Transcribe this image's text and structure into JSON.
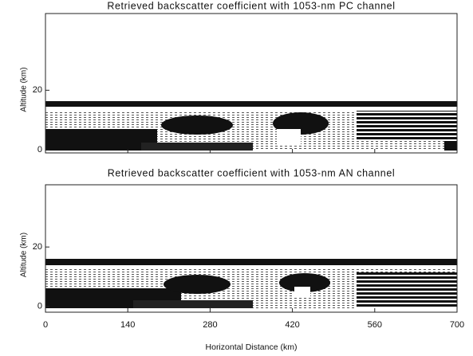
{
  "chart_data": [
    {
      "type": "image",
      "title": "Retrieved backscatter coefficient with 1053-nm PC channel",
      "ylabel": "Altitude (km)",
      "ylim": [
        -1,
        45.7
      ],
      "yticks": [
        0,
        20
      ],
      "xlim": [
        0,
        700
      ],
      "xticks": [
        0,
        140,
        280,
        420,
        560,
        700
      ]
    },
    {
      "type": "image",
      "title": "Retrieved backscatter coefficient with 1053-nm AN channel",
      "ylabel": "Altitude (km)",
      "xlabel": "Horizontal Distance (km)",
      "ylim": [
        -2,
        41
      ],
      "yticks": [
        0,
        20
      ],
      "xlim": [
        0,
        700
      ],
      "xticks": [
        0,
        140,
        280,
        420,
        560,
        700
      ]
    }
  ]
}
